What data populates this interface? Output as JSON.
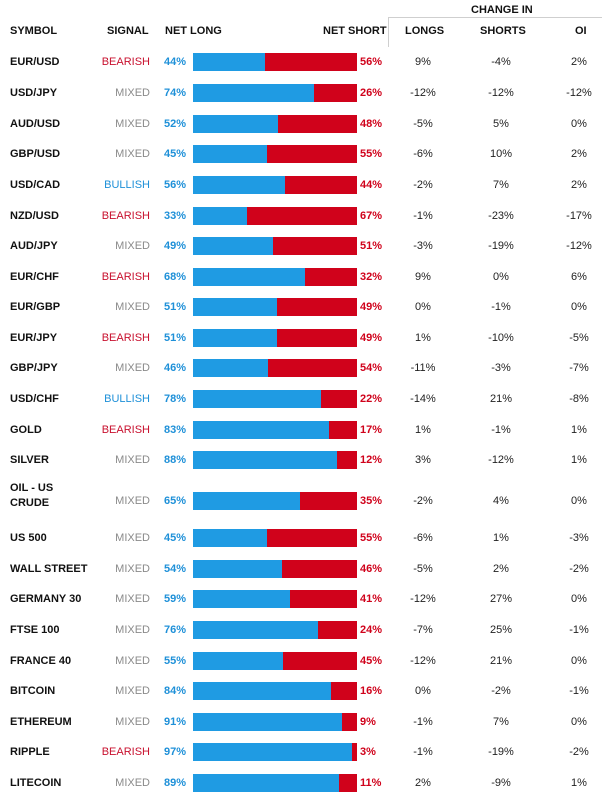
{
  "columns": {
    "symbol": "SYMBOL",
    "signal": "SIGNAL",
    "net_long": "NET LONG",
    "net_short": "NET SHORT",
    "change_in": "CHANGE IN",
    "longs": "LONGS",
    "shorts": "SHORTS",
    "oi": "OI"
  },
  "colors": {
    "long": "#1f9be3",
    "short": "#d0021b",
    "bearish": "#c8102e",
    "bullish": "#1e90d8",
    "mixed": "#8a8a8a"
  },
  "rows": [
    {
      "symbol": "EUR/USD",
      "signal": "BEARISH",
      "long": "44%",
      "short": "56%",
      "long_value": 44,
      "chg_longs": "9%",
      "chg_shorts": "-4%",
      "chg_oi": "2%"
    },
    {
      "symbol": "USD/JPY",
      "signal": "MIXED",
      "long": "74%",
      "short": "26%",
      "long_value": 74,
      "chg_longs": "-12%",
      "chg_shorts": "-12%",
      "chg_oi": "-12%"
    },
    {
      "symbol": "AUD/USD",
      "signal": "MIXED",
      "long": "52%",
      "short": "48%",
      "long_value": 52,
      "chg_longs": "-5%",
      "chg_shorts": "5%",
      "chg_oi": "0%"
    },
    {
      "symbol": "GBP/USD",
      "signal": "MIXED",
      "long": "45%",
      "short": "55%",
      "long_value": 45,
      "chg_longs": "-6%",
      "chg_shorts": "10%",
      "chg_oi": "2%"
    },
    {
      "symbol": "USD/CAD",
      "signal": "BULLISH",
      "long": "56%",
      "short": "44%",
      "long_value": 56,
      "chg_longs": "-2%",
      "chg_shorts": "7%",
      "chg_oi": "2%"
    },
    {
      "symbol": "NZD/USD",
      "signal": "BEARISH",
      "long": "33%",
      "short": "67%",
      "long_value": 33,
      "chg_longs": "-1%",
      "chg_shorts": "-23%",
      "chg_oi": "-17%"
    },
    {
      "symbol": "AUD/JPY",
      "signal": "MIXED",
      "long": "49%",
      "short": "51%",
      "long_value": 49,
      "chg_longs": "-3%",
      "chg_shorts": "-19%",
      "chg_oi": "-12%"
    },
    {
      "symbol": "EUR/CHF",
      "signal": "BEARISH",
      "long": "68%",
      "short": "32%",
      "long_value": 68,
      "chg_longs": "9%",
      "chg_shorts": "0%",
      "chg_oi": "6%"
    },
    {
      "symbol": "EUR/GBP",
      "signal": "MIXED",
      "long": "51%",
      "short": "49%",
      "long_value": 51,
      "chg_longs": "0%",
      "chg_shorts": "-1%",
      "chg_oi": "0%"
    },
    {
      "symbol": "EUR/JPY",
      "signal": "BEARISH",
      "long": "51%",
      "short": "49%",
      "long_value": 51,
      "chg_longs": "1%",
      "chg_shorts": "-10%",
      "chg_oi": "-5%"
    },
    {
      "symbol": "GBP/JPY",
      "signal": "MIXED",
      "long": "46%",
      "short": "54%",
      "long_value": 46,
      "chg_longs": "-11%",
      "chg_shorts": "-3%",
      "chg_oi": "-7%"
    },
    {
      "symbol": "USD/CHF",
      "signal": "BULLISH",
      "long": "78%",
      "short": "22%",
      "long_value": 78,
      "chg_longs": "-14%",
      "chg_shorts": "21%",
      "chg_oi": "-8%"
    },
    {
      "symbol": "GOLD",
      "signal": "BEARISH",
      "long": "83%",
      "short": "17%",
      "long_value": 83,
      "chg_longs": "1%",
      "chg_shorts": "-1%",
      "chg_oi": "1%"
    },
    {
      "symbol": "SILVER",
      "signal": "MIXED",
      "long": "88%",
      "short": "12%",
      "long_value": 88,
      "chg_longs": "3%",
      "chg_shorts": "-12%",
      "chg_oi": "1%"
    },
    {
      "symbol": "OIL - US CRUDE",
      "signal": "MIXED",
      "long": "65%",
      "short": "35%",
      "long_value": 65,
      "chg_longs": "-2%",
      "chg_shorts": "4%",
      "chg_oi": "0%"
    },
    {
      "symbol": "US 500",
      "signal": "MIXED",
      "long": "45%",
      "short": "55%",
      "long_value": 45,
      "chg_longs": "-6%",
      "chg_shorts": "1%",
      "chg_oi": "-3%"
    },
    {
      "symbol": "WALL STREET",
      "signal": "MIXED",
      "long": "54%",
      "short": "46%",
      "long_value": 54,
      "chg_longs": "-5%",
      "chg_shorts": "2%",
      "chg_oi": "-2%"
    },
    {
      "symbol": "GERMANY 30",
      "signal": "MIXED",
      "long": "59%",
      "short": "41%",
      "long_value": 59,
      "chg_longs": "-12%",
      "chg_shorts": "27%",
      "chg_oi": "0%"
    },
    {
      "symbol": "FTSE 100",
      "signal": "MIXED",
      "long": "76%",
      "short": "24%",
      "long_value": 76,
      "chg_longs": "-7%",
      "chg_shorts": "25%",
      "chg_oi": "-1%"
    },
    {
      "symbol": "FRANCE 40",
      "signal": "MIXED",
      "long": "55%",
      "short": "45%",
      "long_value": 55,
      "chg_longs": "-12%",
      "chg_shorts": "21%",
      "chg_oi": "0%"
    },
    {
      "symbol": "BITCOIN",
      "signal": "MIXED",
      "long": "84%",
      "short": "16%",
      "long_value": 84,
      "chg_longs": "0%",
      "chg_shorts": "-2%",
      "chg_oi": "-1%"
    },
    {
      "symbol": "ETHEREUM",
      "signal": "MIXED",
      "long": "91%",
      "short": "9%",
      "long_value": 91,
      "chg_longs": "-1%",
      "chg_shorts": "7%",
      "chg_oi": "0%"
    },
    {
      "symbol": "RIPPLE",
      "signal": "BEARISH",
      "long": "97%",
      "short": "3%",
      "long_value": 97,
      "chg_longs": "-1%",
      "chg_shorts": "-19%",
      "chg_oi": "-2%"
    },
    {
      "symbol": "LITECOIN",
      "signal": "MIXED",
      "long": "89%",
      "short": "11%",
      "long_value": 89,
      "chg_longs": "2%",
      "chg_shorts": "-9%",
      "chg_oi": "1%"
    }
  ]
}
